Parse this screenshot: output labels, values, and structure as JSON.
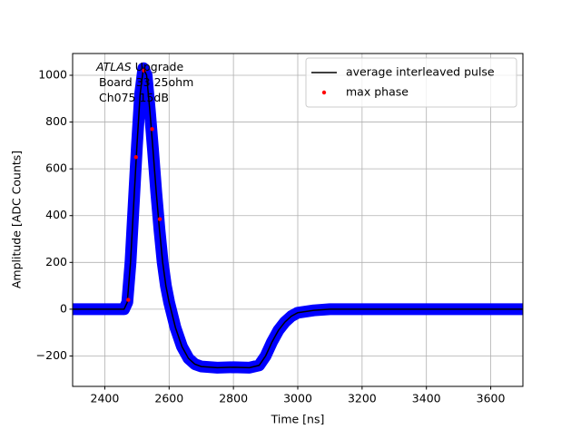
{
  "chart_data": {
    "type": "line",
    "xlabel": "Time [ns]",
    "ylabel": "Amplitude [ADC Counts]",
    "annotation": {
      "italic": "ATLAS",
      "lines": [
        "Upgrade",
        "Board 33 25ohm",
        "Ch075 15dB"
      ]
    },
    "xlim": [
      2300,
      3700
    ],
    "ylim": [
      -330,
      1093
    ],
    "xticks": [
      2400,
      2600,
      2800,
      3000,
      3200,
      3400,
      3600
    ],
    "yticks": [
      {
        "value": -200,
        "label": "−200"
      },
      0,
      200,
      400,
      600,
      800,
      1000
    ],
    "grid": true,
    "legend": "upper right",
    "series": [
      {
        "style": "band",
        "color": "#0000ff",
        "x": [
          2300,
          2460,
          2470,
          2480,
          2490,
          2500,
          2510,
          2520,
          2530,
          2540,
          2550,
          2560,
          2570,
          2580,
          2590,
          2600,
          2620,
          2640,
          2660,
          2680,
          2700,
          2750,
          2800,
          2850,
          2880,
          2900,
          2920,
          2940,
          2960,
          2980,
          3000,
          3050,
          3100,
          3700
        ],
        "values": [
          0,
          0,
          30,
          200,
          450,
          700,
          920,
          1030,
          1000,
          850,
          680,
          500,
          340,
          200,
          100,
          30,
          -80,
          -160,
          -210,
          -235,
          -245,
          -250,
          -248,
          -250,
          -240,
          -200,
          -140,
          -90,
          -55,
          -30,
          -15,
          -5,
          0,
          0
        ]
      },
      {
        "name": "average interleaved pulse",
        "style": "line",
        "color": "#000000",
        "x": [
          2300,
          2460,
          2470,
          2480,
          2490,
          2500,
          2510,
          2520,
          2530,
          2540,
          2550,
          2560,
          2570,
          2580,
          2590,
          2600,
          2620,
          2640,
          2660,
          2680,
          2700,
          2750,
          2800,
          2850,
          2880,
          2900,
          2920,
          2940,
          2960,
          2980,
          3000,
          3050,
          3100,
          3700
        ],
        "values": [
          0,
          0,
          30,
          200,
          450,
          700,
          920,
          1030,
          1000,
          850,
          680,
          500,
          340,
          200,
          100,
          30,
          -80,
          -160,
          -210,
          -235,
          -245,
          -250,
          -248,
          -250,
          -240,
          -200,
          -140,
          -90,
          -55,
          -30,
          -15,
          -5,
          0,
          0
        ]
      },
      {
        "name": "max phase",
        "style": "dots",
        "color": "#ff0000",
        "x": [
          2473,
          2497,
          2522,
          2547,
          2571
        ],
        "values": [
          40,
          650,
          1020,
          770,
          385
        ]
      }
    ]
  }
}
